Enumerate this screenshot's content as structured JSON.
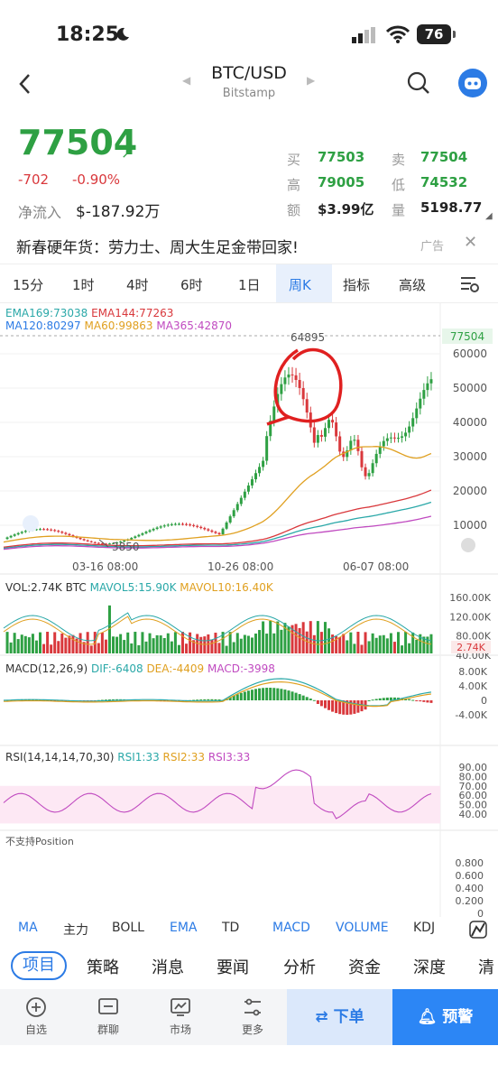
{
  "status": {
    "time": "18:25",
    "battery": "76"
  },
  "nav": {
    "pair": "BTC/USD",
    "exchange": "Bitstamp"
  },
  "quote": {
    "price": "77504",
    "change": "-702",
    "change_pct": "-0.90%",
    "inflow_label": "净流入",
    "inflow_value": "$-187.92万",
    "buy_label": "买",
    "buy_value": "77503",
    "sell_label": "卖",
    "sell_value": "77504",
    "high_label": "高",
    "high_value": "79005",
    "low_label": "低",
    "low_value": "74532",
    "amount_label": "额",
    "amount_value": "$3.99亿",
    "volume_label": "量",
    "volume_value": "5198.77"
  },
  "ad": {
    "text": "新春硬年货：劳力士、周大生足金带回家!",
    "tag": "广告"
  },
  "timeframes": [
    "15分",
    "1时",
    "4时",
    "6时",
    "1日",
    "周K",
    "指标",
    "高级"
  ],
  "timeframe_active": "周K",
  "main_chart": {
    "ema_line1": [
      {
        "text": "EMA169:73038",
        "color": "#2aa8a8"
      },
      {
        "text": "EMA144:77263",
        "color": "#d9383c"
      }
    ],
    "ema_line2": [
      {
        "text": "MA120:80297",
        "color": "#2c7be5"
      },
      {
        "text": "MA60:99863",
        "color": "#e0a020"
      },
      {
        "text": "MA365:42870",
        "color": "#c04ac0"
      }
    ],
    "current_price_tag": "77504",
    "high_marker": "64895",
    "low_marker": "3850",
    "y_ticks": [
      "60000",
      "50000",
      "40000",
      "30000",
      "20000",
      "10000"
    ],
    "x_ticks": [
      "03-16 08:00",
      "10-26 08:00",
      "06-07 08:00"
    ]
  },
  "vol_panel": {
    "labels": [
      {
        "text": "VOL:2.74K BTC",
        "color": "#333"
      },
      {
        "text": "MAVOL5:15.90K",
        "color": "#2aa8a8"
      },
      {
        "text": "MAVOL10:16.40K",
        "color": "#e0a020"
      }
    ],
    "y_ticks": [
      "160.00K",
      "120.00K",
      "80.00K",
      "40.00K"
    ],
    "current": "2.74K"
  },
  "macd_panel": {
    "labels": [
      {
        "text": "MACD(12,26,9)",
        "color": "#333"
      },
      {
        "text": "DIF:-6408",
        "color": "#2aa8a8"
      },
      {
        "text": "DEA:-4409",
        "color": "#e0a020"
      },
      {
        "text": "MACD:-3998",
        "color": "#c04ac0"
      }
    ],
    "y_ticks": [
      "8.00K",
      "4.00K",
      "0",
      "-4.00K"
    ]
  },
  "rsi_panel": {
    "labels": [
      {
        "text": "RSI(14,14,14,70,30)",
        "color": "#333"
      },
      {
        "text": "RSI1:33",
        "color": "#2aa8a8"
      },
      {
        "text": "RSI2:33",
        "color": "#e0a020"
      },
      {
        "text": "RSI3:33",
        "color": "#c04ac0"
      }
    ],
    "y_ticks": [
      "90.00",
      "80.00",
      "70.00",
      "60.00",
      "50.00",
      "40.00"
    ]
  },
  "position_panel": {
    "label": "不支持Position",
    "y_ticks": [
      "0.800",
      "0.600",
      "0.400",
      "0.200",
      "0"
    ]
  },
  "indicator_tabs": [
    {
      "label": "MA",
      "color": "#2c7be5"
    },
    {
      "label": "主力",
      "color": "#333"
    },
    {
      "label": "BOLL",
      "color": "#333"
    },
    {
      "label": "EMA",
      "color": "#2c7be5"
    },
    {
      "label": "TD",
      "color": "#333"
    },
    {
      "label": "MACD",
      "color": "#2c7be5"
    },
    {
      "label": "VOLUME",
      "color": "#2c7be5"
    },
    {
      "label": "KDJ",
      "color": "#333"
    }
  ],
  "sub_tabs": [
    "项目",
    "策略",
    "消息",
    "要闻",
    "分析",
    "资金",
    "深度",
    "清"
  ],
  "bottom_nav": [
    {
      "label": "自选",
      "icon": "plus-circle-icon"
    },
    {
      "label": "群聊",
      "icon": "chat-icon"
    },
    {
      "label": "市场",
      "icon": "market-chart-icon"
    },
    {
      "label": "更多",
      "icon": "more-sliders-icon"
    }
  ],
  "order_button": "下单",
  "alert_button": "预警",
  "colors": {
    "up": "#2ea043",
    "down": "#d9383c",
    "accent": "#2c7be5"
  }
}
